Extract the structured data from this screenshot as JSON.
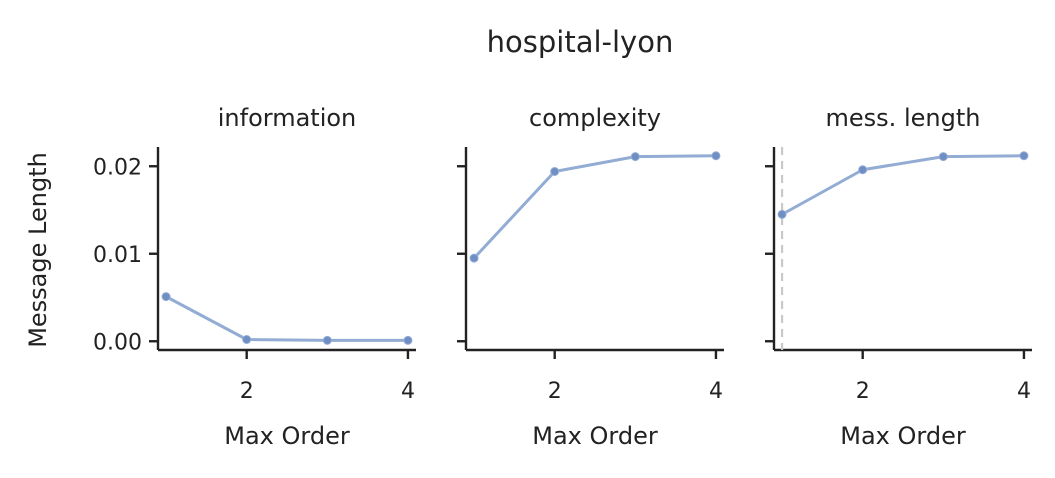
{
  "chart_data": {
    "title": "hospital-lyon",
    "type": "line",
    "ylabel": "Message Length",
    "ylim": [
      -0.001,
      0.0222
    ],
    "yticks": [
      0.0,
      0.01,
      0.02
    ],
    "ytick_labels": [
      "0.00",
      "0.01",
      "0.02"
    ],
    "grid": false,
    "series_color": "#92acd4",
    "marker_color": "#6f8ec4",
    "reference_line_color": "#c8c8c8",
    "panels": [
      {
        "title": "information",
        "xlabel": "Max Order",
        "xlim": [
          0.9,
          4.1
        ],
        "xticks": [
          2,
          4
        ],
        "xtick_labels": [
          "2",
          "4"
        ],
        "x": [
          1,
          2,
          3,
          4
        ],
        "y": [
          0.0051,
          0.0002,
          0.0001,
          0.0001
        ]
      },
      {
        "title": "complexity",
        "xlabel": "Max Order",
        "xlim": [
          0.9,
          4.1
        ],
        "xticks": [
          2,
          4
        ],
        "xtick_labels": [
          "2",
          "4"
        ],
        "x": [
          1,
          2,
          3,
          4
        ],
        "y": [
          0.0095,
          0.0194,
          0.0211,
          0.0212
        ]
      },
      {
        "title": "mess. length",
        "xlabel": "Max Order",
        "xlim": [
          0.9,
          4.1
        ],
        "xticks": [
          2,
          4
        ],
        "xtick_labels": [
          "2",
          "4"
        ],
        "x": [
          1,
          2,
          3,
          4
        ],
        "y": [
          0.0145,
          0.0196,
          0.0211,
          0.0212
        ],
        "reference_x": 1
      }
    ]
  }
}
